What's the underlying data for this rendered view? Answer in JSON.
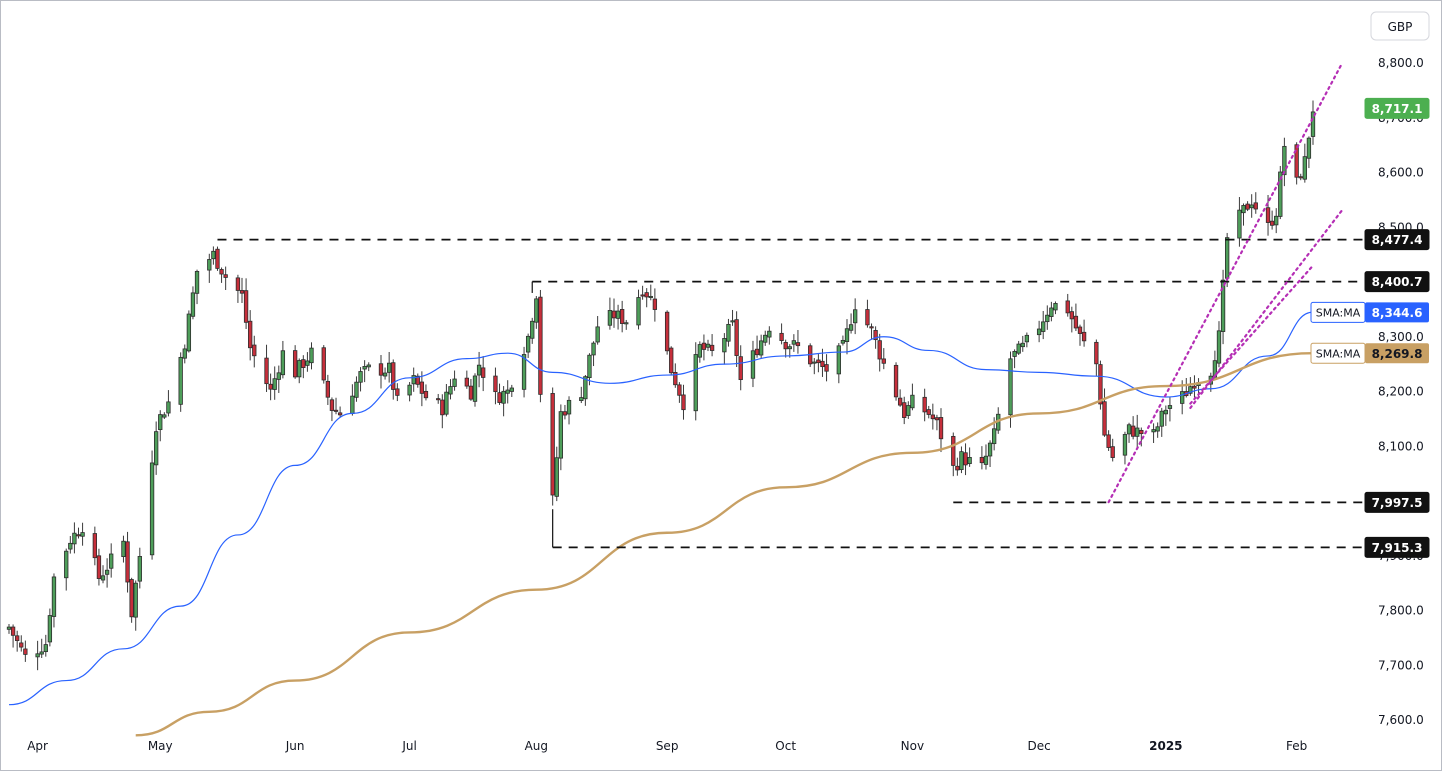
{
  "chart_data": {
    "type": "candlestick",
    "currency": "GBP",
    "y_ticks": [
      "8,800.0",
      "8,700.0",
      "8,600.0",
      "8,500.0",
      "8,400.0",
      "8,300.0",
      "8,200.0",
      "8,100.0",
      "8,000.0",
      "7,900.0",
      "7,800.0",
      "7,700.0",
      "7,600.0"
    ],
    "y_tick_values": [
      8800,
      8700,
      8600,
      8500,
      8400,
      8300,
      8200,
      8100,
      8000,
      7900,
      7800,
      7700,
      7600
    ],
    "ylim": [
      7572,
      8880
    ],
    "x_labels": [
      "Apr",
      "May",
      "Jun",
      "Jul",
      "Aug",
      "Sep",
      "Oct",
      "Nov",
      "Dec",
      "2025",
      "Feb"
    ],
    "x_label_dates": [
      "2024-04-01",
      "2024-05-01",
      "2024-06-03",
      "2024-07-01",
      "2024-08-01",
      "2024-09-02",
      "2024-10-01",
      "2024-11-01",
      "2024-12-02",
      "2025-01-02",
      "2025-02-03"
    ],
    "date_range": [
      "2024-03-25",
      "2025-02-14"
    ],
    "levels": [
      {
        "value": 8477.4,
        "label": "8,477.4",
        "from": "2024-05-15",
        "style": "dashed"
      },
      {
        "value": 8400.7,
        "label": "8,400.7",
        "from": "2024-07-31",
        "style": "dashed"
      },
      {
        "value": 7997.5,
        "label": "7,997.5",
        "from": "2024-11-11",
        "style": "dashed"
      },
      {
        "value": 7915.3,
        "label": "7,915.3",
        "from": "2024-08-05",
        "style": "dashed"
      }
    ],
    "last_price": {
      "value": 8717.1,
      "label": "8,717.1",
      "color": "#4caf50"
    },
    "moving_averages": [
      {
        "name": "SMA:MA",
        "label": "8,344.6",
        "value": 8344.6,
        "color": "#2962ff",
        "points": [
          [
            "2024-03-25",
            7628
          ],
          [
            "2024-04-08",
            7672
          ],
          [
            "2024-04-22",
            7730
          ],
          [
            "2024-05-06",
            7808
          ],
          [
            "2024-05-20",
            7938
          ],
          [
            "2024-06-03",
            8065
          ],
          [
            "2024-06-17",
            8160
          ],
          [
            "2024-07-01",
            8225
          ],
          [
            "2024-07-15",
            8260
          ],
          [
            "2024-07-25",
            8270
          ],
          [
            "2024-08-05",
            8235
          ],
          [
            "2024-08-19",
            8215
          ],
          [
            "2024-09-02",
            8230
          ],
          [
            "2024-09-16",
            8250
          ],
          [
            "2024-10-01",
            8265
          ],
          [
            "2024-10-15",
            8272
          ],
          [
            "2024-10-25",
            8300
          ],
          [
            "2024-11-05",
            8275
          ],
          [
            "2024-11-19",
            8240
          ],
          [
            "2024-12-02",
            8235
          ],
          [
            "2024-12-16",
            8228
          ],
          [
            "2025-01-02",
            8190
          ],
          [
            "2025-01-13",
            8205
          ],
          [
            "2025-01-27",
            8265
          ],
          [
            "2025-02-07",
            8345
          ]
        ]
      },
      {
        "name": "SMA:MA",
        "label": "8,269.8",
        "value": 8269.8,
        "color": "#c8a064",
        "points": [
          [
            "2024-04-25",
            7572
          ],
          [
            "2024-05-13",
            7615
          ],
          [
            "2024-06-03",
            7672
          ],
          [
            "2024-07-01",
            7760
          ],
          [
            "2024-08-01",
            7838
          ],
          [
            "2024-09-02",
            7942
          ],
          [
            "2024-10-01",
            8025
          ],
          [
            "2024-11-01",
            8088
          ],
          [
            "2024-12-02",
            8160
          ],
          [
            "2025-01-02",
            8210
          ],
          [
            "2025-02-07",
            8270
          ]
        ]
      }
    ],
    "trendlines": [
      {
        "from": [
          "2024-12-19",
          7998
        ],
        "to": [
          "2025-02-14",
          8798
        ],
        "color": "#b52fb5",
        "style": "dotted"
      },
      {
        "from": [
          "2025-01-08",
          8170
        ],
        "to": [
          "2025-02-14",
          8530
        ],
        "color": "#b52fb5",
        "style": "dotted"
      },
      {
        "from": [
          "2025-01-08",
          8178
        ],
        "to": [
          "2025-02-07",
          8430
        ],
        "color": "#b52fb5",
        "style": "dotted"
      }
    ],
    "ohlc_anchors": [
      [
        "2024-03-25",
        7770
      ],
      [
        "2024-03-29",
        7715
      ],
      [
        "2024-04-03",
        7740
      ],
      [
        "2024-04-05",
        7860
      ],
      [
        "2024-04-09",
        7930
      ],
      [
        "2024-04-12",
        7955
      ],
      [
        "2024-04-16",
        7860
      ],
      [
        "2024-04-18",
        7880
      ],
      [
        "2024-04-22",
        7925
      ],
      [
        "2024-04-24",
        7795
      ],
      [
        "2024-04-26",
        7900
      ],
      [
        "2024-04-30",
        8140
      ],
      [
        "2024-05-03",
        8180
      ],
      [
        "2024-05-07",
        8290
      ],
      [
        "2024-05-10",
        8420
      ],
      [
        "2024-05-14",
        8450
      ],
      [
        "2024-05-17",
        8410
      ],
      [
        "2024-05-21",
        8375
      ],
      [
        "2024-05-23",
        8280
      ],
      [
        "2024-05-28",
        8200
      ],
      [
        "2024-05-31",
        8270
      ],
      [
        "2024-06-03",
        8235
      ],
      [
        "2024-06-07",
        8270
      ],
      [
        "2024-06-12",
        8170
      ],
      [
        "2024-06-14",
        8160
      ],
      [
        "2024-06-19",
        8230
      ],
      [
        "2024-06-21",
        8240
      ],
      [
        "2024-06-26",
        8240
      ],
      [
        "2024-06-28",
        8180
      ],
      [
        "2024-07-02",
        8220
      ],
      [
        "2024-07-05",
        8190
      ],
      [
        "2024-07-09",
        8170
      ],
      [
        "2024-07-12",
        8230
      ],
      [
        "2024-07-16",
        8200
      ],
      [
        "2024-07-18",
        8250
      ],
      [
        "2024-07-22",
        8190
      ],
      [
        "2024-07-25",
        8200
      ],
      [
        "2024-07-30",
        8300
      ],
      [
        "2024-08-01",
        8380
      ],
      [
        "2024-08-02",
        8200
      ],
      [
        "2024-08-05",
        8000
      ],
      [
        "2024-08-07",
        8160
      ],
      [
        "2024-08-12",
        8200
      ],
      [
        "2024-08-16",
        8320
      ],
      [
        "2024-08-20",
        8340
      ],
      [
        "2024-08-23",
        8330
      ],
      [
        "2024-08-27",
        8390
      ],
      [
        "2024-08-30",
        8360
      ],
      [
        "2024-09-03",
        8240
      ],
      [
        "2024-09-06",
        8180
      ],
      [
        "2024-09-10",
        8280
      ],
      [
        "2024-09-13",
        8270
      ],
      [
        "2024-09-18",
        8320
      ],
      [
        "2024-09-20",
        8220
      ],
      [
        "2024-09-24",
        8280
      ],
      [
        "2024-09-27",
        8320
      ],
      [
        "2024-10-01",
        8290
      ],
      [
        "2024-10-04",
        8280
      ],
      [
        "2024-10-08",
        8250
      ],
      [
        "2024-10-11",
        8240
      ],
      [
        "2024-10-15",
        8280
      ],
      [
        "2024-10-18",
        8360
      ],
      [
        "2024-10-22",
        8310
      ],
      [
        "2024-10-25",
        8250
      ],
      [
        "2024-10-30",
        8160
      ],
      [
        "2024-11-01",
        8180
      ],
      [
        "2024-11-05",
        8160
      ],
      [
        "2024-11-07",
        8140
      ],
      [
        "2024-11-11",
        8060
      ],
      [
        "2024-11-13",
        8080
      ],
      [
        "2024-11-18",
        8060
      ],
      [
        "2024-11-21",
        8120
      ],
      [
        "2024-11-25",
        8260
      ],
      [
        "2024-11-28",
        8280
      ],
      [
        "2024-12-02",
        8320
      ],
      [
        "2024-12-05",
        8360
      ],
      [
        "2024-12-09",
        8350
      ],
      [
        "2024-12-12",
        8300
      ],
      [
        "2024-12-16",
        8250
      ],
      [
        "2024-12-18",
        8120
      ],
      [
        "2024-12-20",
        8080
      ],
      [
        "2024-12-24",
        8130
      ],
      [
        "2024-12-30",
        8120
      ],
      [
        "2025-01-02",
        8170
      ],
      [
        "2025-01-06",
        8190
      ],
      [
        "2025-01-09",
        8220
      ],
      [
        "2025-01-13",
        8240
      ],
      [
        "2025-01-15",
        8300
      ],
      [
        "2025-01-16",
        8390
      ],
      [
        "2025-01-17",
        8480
      ],
      [
        "2025-01-21",
        8530
      ],
      [
        "2025-01-23",
        8550
      ],
      [
        "2025-01-27",
        8500
      ],
      [
        "2025-01-29",
        8530
      ],
      [
        "2025-01-31",
        8650
      ],
      [
        "2025-02-03",
        8580
      ],
      [
        "2025-02-05",
        8620
      ],
      [
        "2025-02-07",
        8717
      ]
    ]
  }
}
